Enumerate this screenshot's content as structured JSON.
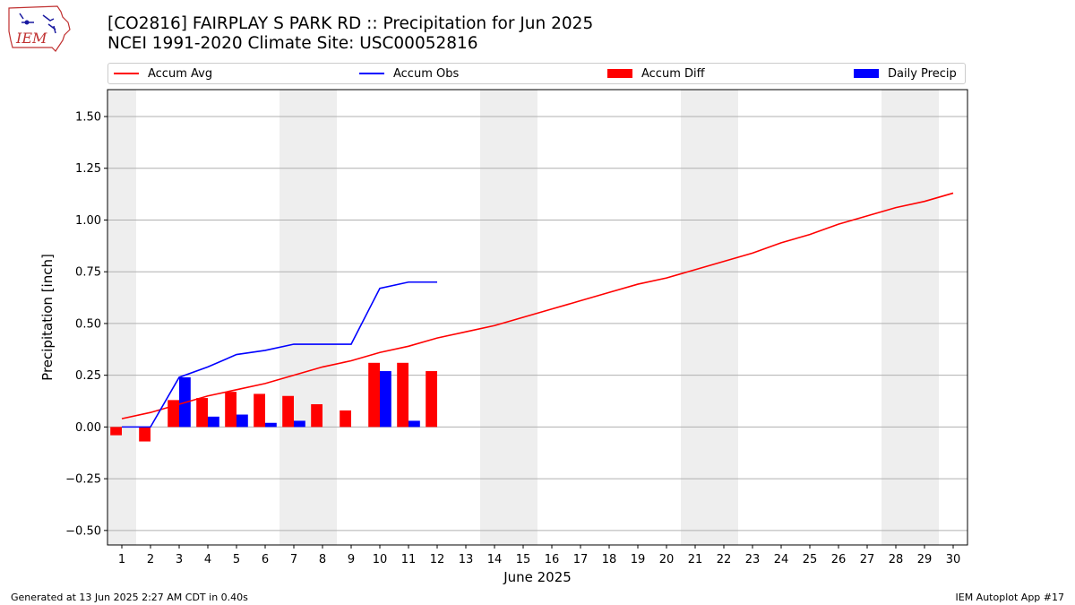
{
  "header": {
    "title_line1": "[CO2816] FAIRPLAY S PARK RD :: Precipitation for Jun 2025",
    "title_line2": "NCEI 1991-2020 Climate Site: USC00052816",
    "logo_text": "IEM"
  },
  "legend": [
    {
      "label": "Accum Avg",
      "kind": "line",
      "color": "#ff0000"
    },
    {
      "label": "Accum Obs",
      "kind": "line",
      "color": "#0000ff"
    },
    {
      "label": "Accum Diff",
      "kind": "patch",
      "color": "#ff0000"
    },
    {
      "label": "Daily Precip",
      "kind": "patch",
      "color": "#0000ff"
    }
  ],
  "footer": {
    "left": "Generated at 13 Jun 2025 2:27 AM CDT in 0.40s",
    "right": "IEM Autoplot App #17"
  },
  "chart_data": {
    "type": "bar",
    "xlabel": "June 2025",
    "ylabel": "Precipitation [inch]",
    "xlim": [
      0.5,
      30.5
    ],
    "ylim": [
      -0.57,
      1.63
    ],
    "x_ticks": [
      1,
      2,
      3,
      4,
      5,
      6,
      7,
      8,
      9,
      10,
      11,
      12,
      13,
      14,
      15,
      16,
      17,
      18,
      19,
      20,
      21,
      22,
      23,
      24,
      25,
      26,
      27,
      28,
      29,
      30
    ],
    "y_ticks": [
      -0.5,
      -0.25,
      0.0,
      0.25,
      0.5,
      0.75,
      1.0,
      1.25,
      1.5
    ],
    "y_tick_labels": [
      "−0.50",
      "−0.25",
      "0.00",
      "0.25",
      "0.50",
      "0.75",
      "1.00",
      "1.25",
      "1.50"
    ],
    "grid": "y",
    "weekend_shading": [
      [
        0.5,
        1.5
      ],
      [
        6.5,
        8.5
      ],
      [
        13.5,
        15.5
      ],
      [
        20.5,
        22.5
      ],
      [
        27.5,
        29.5
      ]
    ],
    "series": [
      {
        "name": "Accum Avg",
        "type": "line",
        "color": "#ff0000",
        "x": [
          1,
          2,
          3,
          4,
          5,
          6,
          7,
          8,
          9,
          10,
          11,
          12,
          13,
          14,
          15,
          16,
          17,
          18,
          19,
          20,
          21,
          22,
          23,
          24,
          25,
          26,
          27,
          28,
          29,
          30
        ],
        "values": [
          0.04,
          0.07,
          0.11,
          0.15,
          0.18,
          0.21,
          0.25,
          0.29,
          0.32,
          0.36,
          0.39,
          0.43,
          0.46,
          0.49,
          0.53,
          0.57,
          0.61,
          0.65,
          0.69,
          0.72,
          0.76,
          0.8,
          0.84,
          0.89,
          0.93,
          0.98,
          1.02,
          1.06,
          1.09,
          1.13
        ]
      },
      {
        "name": "Accum Obs",
        "type": "line",
        "color": "#0000ff",
        "x": [
          1,
          2,
          3,
          4,
          5,
          6,
          7,
          8,
          9,
          10,
          11,
          12
        ],
        "values": [
          0.0,
          0.0,
          0.24,
          0.29,
          0.35,
          0.37,
          0.4,
          0.4,
          0.4,
          0.67,
          0.7,
          0.7
        ]
      },
      {
        "name": "Accum Diff",
        "type": "bar",
        "color": "#ff0000",
        "x": [
          1,
          2,
          3,
          4,
          5,
          6,
          7,
          8,
          9,
          10,
          11,
          12
        ],
        "values": [
          -0.04,
          -0.07,
          0.13,
          0.14,
          0.17,
          0.16,
          0.15,
          0.11,
          0.08,
          0.31,
          0.31,
          0.27
        ]
      },
      {
        "name": "Daily Precip",
        "type": "bar",
        "color": "#0000ff",
        "x": [
          1,
          2,
          3,
          4,
          5,
          6,
          7,
          8,
          9,
          10,
          11,
          12
        ],
        "values": [
          0.0,
          0.0,
          0.24,
          0.05,
          0.06,
          0.02,
          0.03,
          0.0,
          0.0,
          0.27,
          0.03,
          0.0
        ]
      }
    ]
  }
}
